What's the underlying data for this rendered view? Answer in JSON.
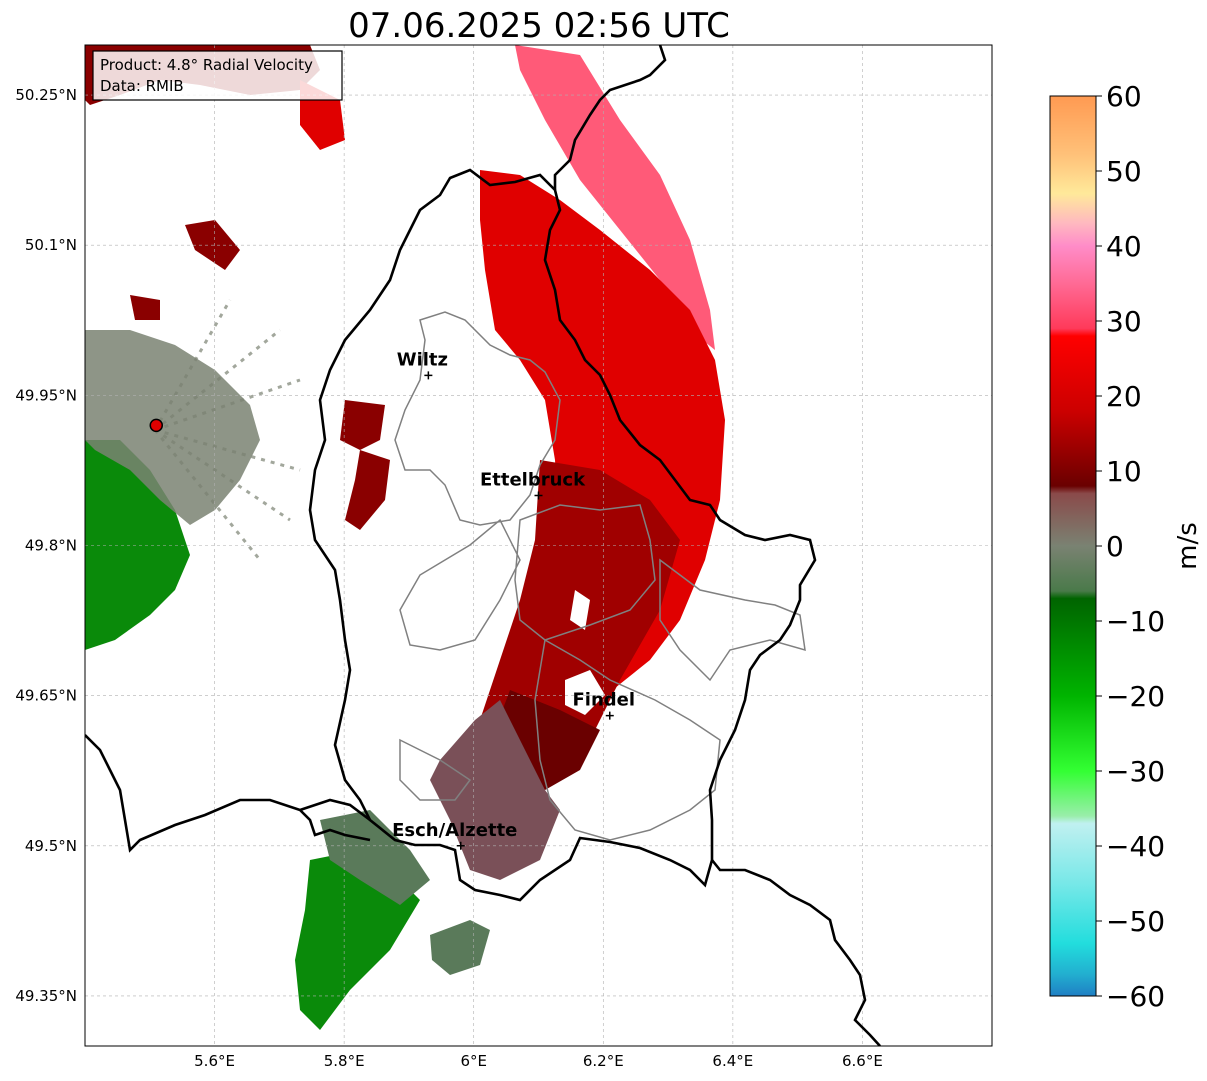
{
  "title": "07.06.2025 02:56 UTC",
  "info_box": {
    "product": "Product: 4.8° Radial Velocity",
    "source": "Data: RMIB"
  },
  "map": {
    "lon_range": [
      5.4,
      6.8
    ],
    "lat_range": [
      49.3,
      50.3
    ],
    "lat_ticks": [
      {
        "value": 50.25,
        "label": "50.25°N"
      },
      {
        "value": 50.1,
        "label": "50.1°N"
      },
      {
        "value": 49.95,
        "label": "49.95°N"
      },
      {
        "value": 49.8,
        "label": "49.8°N"
      },
      {
        "value": 49.65,
        "label": "49.65°N"
      },
      {
        "value": 49.5,
        "label": "49.5°N"
      },
      {
        "value": 49.35,
        "label": "49.35°N"
      }
    ],
    "lon_ticks": [
      {
        "value": 5.6,
        "label": "5.6°E"
      },
      {
        "value": 5.8,
        "label": "5.8°E"
      },
      {
        "value": 6.0,
        "label": "6°E"
      },
      {
        "value": 6.2,
        "label": "6.2°E"
      },
      {
        "value": 6.4,
        "label": "6.4°E"
      },
      {
        "value": 6.6,
        "label": "6.6°E"
      }
    ],
    "gridlines": true,
    "cities": [
      {
        "name": "Wiltz",
        "lon": 5.93,
        "lat": 49.97
      },
      {
        "name": "Ettelbruck",
        "lon": 6.1,
        "lat": 49.85
      },
      {
        "name": "Findel",
        "lon": 6.21,
        "lat": 49.63
      },
      {
        "name": "Esch/Alzette",
        "lon": 5.98,
        "lat": 49.5
      }
    ],
    "radar_site": {
      "lon": 5.51,
      "lat": 49.92
    }
  },
  "colorbar": {
    "label": "m/s",
    "min": -60,
    "max": 60,
    "ticks": [
      {
        "value": 60,
        "label": "60"
      },
      {
        "value": 50,
        "label": "50"
      },
      {
        "value": 40,
        "label": "40"
      },
      {
        "value": 30,
        "label": "30"
      },
      {
        "value": 20,
        "label": "20"
      },
      {
        "value": 10,
        "label": "10"
      },
      {
        "value": 0,
        "label": "0"
      },
      {
        "value": -10,
        "label": "−10"
      },
      {
        "value": -20,
        "label": "−20"
      },
      {
        "value": -30,
        "label": "−30"
      },
      {
        "value": -40,
        "label": "−40"
      },
      {
        "value": -50,
        "label": "−50"
      },
      {
        "value": -60,
        "label": "−60"
      }
    ],
    "color_stops": [
      {
        "value": 60,
        "color": "#ff9a52"
      },
      {
        "value": 52,
        "color": "#ffc27a"
      },
      {
        "value": 47,
        "color": "#ffe99a"
      },
      {
        "value": 43,
        "color": "#ffb8c0"
      },
      {
        "value": 40,
        "color": "#ff8cc8"
      },
      {
        "value": 35,
        "color": "#ff6a95"
      },
      {
        "value": 29,
        "color": "#ff3a5a"
      },
      {
        "value": 28,
        "color": "#ff0000"
      },
      {
        "value": 18,
        "color": "#cc0000"
      },
      {
        "value": 8,
        "color": "#6a0000"
      },
      {
        "value": 7,
        "color": "#8a4a4a"
      },
      {
        "value": 0,
        "color": "#7a8272"
      },
      {
        "value": -6,
        "color": "#4a7a4a"
      },
      {
        "value": -7,
        "color": "#006400"
      },
      {
        "value": -20,
        "color": "#00b400"
      },
      {
        "value": -30,
        "color": "#33ff33"
      },
      {
        "value": -36,
        "color": "#99eeaa"
      },
      {
        "value": -37,
        "color": "#c0f0f0"
      },
      {
        "value": -45,
        "color": "#77e8e8"
      },
      {
        "value": -53,
        "color": "#22dddd"
      },
      {
        "value": -57,
        "color": "#22b0d0"
      },
      {
        "value": -60,
        "color": "#1f7fc4"
      }
    ]
  },
  "colors": {
    "border_country": "#000000",
    "border_canton": "#808080",
    "grid": "#b0b0b0",
    "band_red": "#e00000",
    "band_pink": "#ff5a78",
    "band_darkred": "#9a0000",
    "band_brown": "#7a4a50",
    "green": "#0a8a0a",
    "grey_green": "#6a8a6a"
  }
}
